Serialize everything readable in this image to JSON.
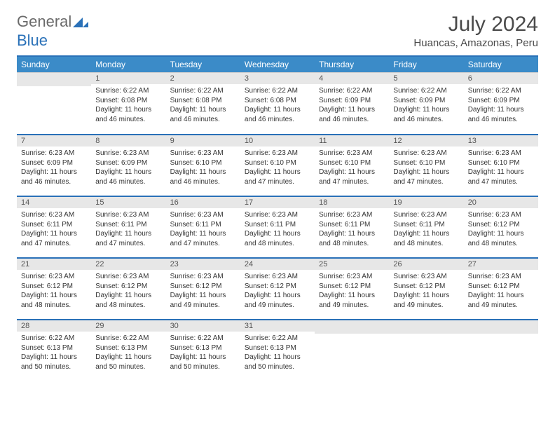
{
  "logo": {
    "text1": "General",
    "text2": "Blue"
  },
  "title": "July 2024",
  "subtitle": "Huancas, Amazonas, Peru",
  "colors": {
    "header_bg": "#3b8bc8",
    "header_border": "#2a71b8",
    "daynum_bg": "#e7e7e7",
    "text": "#333333"
  },
  "weekdays": [
    "Sunday",
    "Monday",
    "Tuesday",
    "Wednesday",
    "Thursday",
    "Friday",
    "Saturday"
  ],
  "weeks": [
    [
      null,
      {
        "n": "1",
        "sr": "Sunrise: 6:22 AM",
        "ss": "Sunset: 6:08 PM",
        "dl": "Daylight: 11 hours and 46 minutes."
      },
      {
        "n": "2",
        "sr": "Sunrise: 6:22 AM",
        "ss": "Sunset: 6:08 PM",
        "dl": "Daylight: 11 hours and 46 minutes."
      },
      {
        "n": "3",
        "sr": "Sunrise: 6:22 AM",
        "ss": "Sunset: 6:08 PM",
        "dl": "Daylight: 11 hours and 46 minutes."
      },
      {
        "n": "4",
        "sr": "Sunrise: 6:22 AM",
        "ss": "Sunset: 6:09 PM",
        "dl": "Daylight: 11 hours and 46 minutes."
      },
      {
        "n": "5",
        "sr": "Sunrise: 6:22 AM",
        "ss": "Sunset: 6:09 PM",
        "dl": "Daylight: 11 hours and 46 minutes."
      },
      {
        "n": "6",
        "sr": "Sunrise: 6:22 AM",
        "ss": "Sunset: 6:09 PM",
        "dl": "Daylight: 11 hours and 46 minutes."
      }
    ],
    [
      {
        "n": "7",
        "sr": "Sunrise: 6:23 AM",
        "ss": "Sunset: 6:09 PM",
        "dl": "Daylight: 11 hours and 46 minutes."
      },
      {
        "n": "8",
        "sr": "Sunrise: 6:23 AM",
        "ss": "Sunset: 6:09 PM",
        "dl": "Daylight: 11 hours and 46 minutes."
      },
      {
        "n": "9",
        "sr": "Sunrise: 6:23 AM",
        "ss": "Sunset: 6:10 PM",
        "dl": "Daylight: 11 hours and 46 minutes."
      },
      {
        "n": "10",
        "sr": "Sunrise: 6:23 AM",
        "ss": "Sunset: 6:10 PM",
        "dl": "Daylight: 11 hours and 47 minutes."
      },
      {
        "n": "11",
        "sr": "Sunrise: 6:23 AM",
        "ss": "Sunset: 6:10 PM",
        "dl": "Daylight: 11 hours and 47 minutes."
      },
      {
        "n": "12",
        "sr": "Sunrise: 6:23 AM",
        "ss": "Sunset: 6:10 PM",
        "dl": "Daylight: 11 hours and 47 minutes."
      },
      {
        "n": "13",
        "sr": "Sunrise: 6:23 AM",
        "ss": "Sunset: 6:10 PM",
        "dl": "Daylight: 11 hours and 47 minutes."
      }
    ],
    [
      {
        "n": "14",
        "sr": "Sunrise: 6:23 AM",
        "ss": "Sunset: 6:11 PM",
        "dl": "Daylight: 11 hours and 47 minutes."
      },
      {
        "n": "15",
        "sr": "Sunrise: 6:23 AM",
        "ss": "Sunset: 6:11 PM",
        "dl": "Daylight: 11 hours and 47 minutes."
      },
      {
        "n": "16",
        "sr": "Sunrise: 6:23 AM",
        "ss": "Sunset: 6:11 PM",
        "dl": "Daylight: 11 hours and 47 minutes."
      },
      {
        "n": "17",
        "sr": "Sunrise: 6:23 AM",
        "ss": "Sunset: 6:11 PM",
        "dl": "Daylight: 11 hours and 48 minutes."
      },
      {
        "n": "18",
        "sr": "Sunrise: 6:23 AM",
        "ss": "Sunset: 6:11 PM",
        "dl": "Daylight: 11 hours and 48 minutes."
      },
      {
        "n": "19",
        "sr": "Sunrise: 6:23 AM",
        "ss": "Sunset: 6:11 PM",
        "dl": "Daylight: 11 hours and 48 minutes."
      },
      {
        "n": "20",
        "sr": "Sunrise: 6:23 AM",
        "ss": "Sunset: 6:12 PM",
        "dl": "Daylight: 11 hours and 48 minutes."
      }
    ],
    [
      {
        "n": "21",
        "sr": "Sunrise: 6:23 AM",
        "ss": "Sunset: 6:12 PM",
        "dl": "Daylight: 11 hours and 48 minutes."
      },
      {
        "n": "22",
        "sr": "Sunrise: 6:23 AM",
        "ss": "Sunset: 6:12 PM",
        "dl": "Daylight: 11 hours and 48 minutes."
      },
      {
        "n": "23",
        "sr": "Sunrise: 6:23 AM",
        "ss": "Sunset: 6:12 PM",
        "dl": "Daylight: 11 hours and 49 minutes."
      },
      {
        "n": "24",
        "sr": "Sunrise: 6:23 AM",
        "ss": "Sunset: 6:12 PM",
        "dl": "Daylight: 11 hours and 49 minutes."
      },
      {
        "n": "25",
        "sr": "Sunrise: 6:23 AM",
        "ss": "Sunset: 6:12 PM",
        "dl": "Daylight: 11 hours and 49 minutes."
      },
      {
        "n": "26",
        "sr": "Sunrise: 6:23 AM",
        "ss": "Sunset: 6:12 PM",
        "dl": "Daylight: 11 hours and 49 minutes."
      },
      {
        "n": "27",
        "sr": "Sunrise: 6:23 AM",
        "ss": "Sunset: 6:12 PM",
        "dl": "Daylight: 11 hours and 49 minutes."
      }
    ],
    [
      {
        "n": "28",
        "sr": "Sunrise: 6:22 AM",
        "ss": "Sunset: 6:13 PM",
        "dl": "Daylight: 11 hours and 50 minutes."
      },
      {
        "n": "29",
        "sr": "Sunrise: 6:22 AM",
        "ss": "Sunset: 6:13 PM",
        "dl": "Daylight: 11 hours and 50 minutes."
      },
      {
        "n": "30",
        "sr": "Sunrise: 6:22 AM",
        "ss": "Sunset: 6:13 PM",
        "dl": "Daylight: 11 hours and 50 minutes."
      },
      {
        "n": "31",
        "sr": "Sunrise: 6:22 AM",
        "ss": "Sunset: 6:13 PM",
        "dl": "Daylight: 11 hours and 50 minutes."
      },
      null,
      null,
      null
    ]
  ]
}
